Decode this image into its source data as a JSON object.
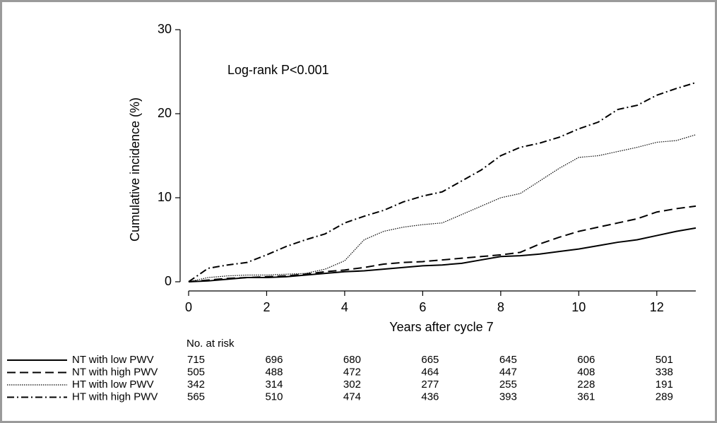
{
  "chart_data": {
    "type": "line",
    "annotation": "Log-rank P<0.001",
    "x_label": "Years after cycle 7",
    "y_label": "Cumulative incidence (%)",
    "xlim": [
      0,
      13
    ],
    "xticks": [
      0,
      2,
      4,
      6,
      8,
      10,
      12
    ],
    "ylim": [
      0,
      30
    ],
    "yticks": [
      0,
      10,
      20,
      30
    ],
    "x": [
      0,
      0.5,
      1,
      1.5,
      2,
      2.5,
      3,
      3.5,
      4,
      4.5,
      5,
      5.5,
      6,
      6.5,
      7,
      7.5,
      8,
      8.5,
      9,
      9.5,
      10,
      10.5,
      11,
      11.5,
      12,
      12.5,
      13
    ],
    "series": [
      {
        "name": "NT with low PWV",
        "color": "#000000",
        "dash": "solid",
        "values": [
          0,
          0.1,
          0.3,
          0.5,
          0.5,
          0.6,
          0.8,
          1.0,
          1.2,
          1.3,
          1.5,
          1.7,
          1.9,
          2.0,
          2.2,
          2.6,
          3.0,
          3.1,
          3.3,
          3.6,
          3.9,
          4.3,
          4.7,
          5.0,
          5.5,
          6.0,
          6.4
        ],
        "at_risk": [
          715,
          696,
          680,
          665,
          645,
          606,
          501
        ]
      },
      {
        "name": "NT with high PWV",
        "color": "#000000",
        "dash": "dashed",
        "values": [
          0,
          0.2,
          0.4,
          0.5,
          0.6,
          0.7,
          0.9,
          1.2,
          1.4,
          1.7,
          2.1,
          2.3,
          2.4,
          2.6,
          2.8,
          3.0,
          3.2,
          3.5,
          4.5,
          5.3,
          6.0,
          6.5,
          7.0,
          7.5,
          8.3,
          8.7,
          9.0
        ],
        "at_risk": [
          505,
          488,
          472,
          464,
          447,
          408,
          338
        ]
      },
      {
        "name": "HT with low PWV",
        "color": "#000000",
        "dash": "dotted",
        "values": [
          0,
          0.5,
          0.7,
          0.8,
          0.8,
          0.9,
          1.0,
          1.5,
          2.5,
          5.0,
          6.0,
          6.5,
          6.8,
          7.0,
          8.0,
          9.0,
          10.0,
          10.5,
          12.0,
          13.5,
          14.8,
          15.0,
          15.5,
          16.0,
          16.6,
          16.8,
          17.5
        ],
        "at_risk": [
          342,
          314,
          302,
          277,
          255,
          228,
          191
        ]
      },
      {
        "name": "HT with high PWV",
        "color": "#000000",
        "dash": "dashdot",
        "values": [
          0,
          1.6,
          2.0,
          2.3,
          3.2,
          4.2,
          5.0,
          5.7,
          7.0,
          7.8,
          8.5,
          9.5,
          10.2,
          10.7,
          12.0,
          13.3,
          15.0,
          16.0,
          16.5,
          17.2,
          18.2,
          19.0,
          20.5,
          21.0,
          22.2,
          23.0,
          23.7
        ],
        "at_risk": [
          565,
          510,
          474,
          436,
          393,
          361,
          289
        ]
      }
    ],
    "risk_table_title": "No. at risk"
  }
}
